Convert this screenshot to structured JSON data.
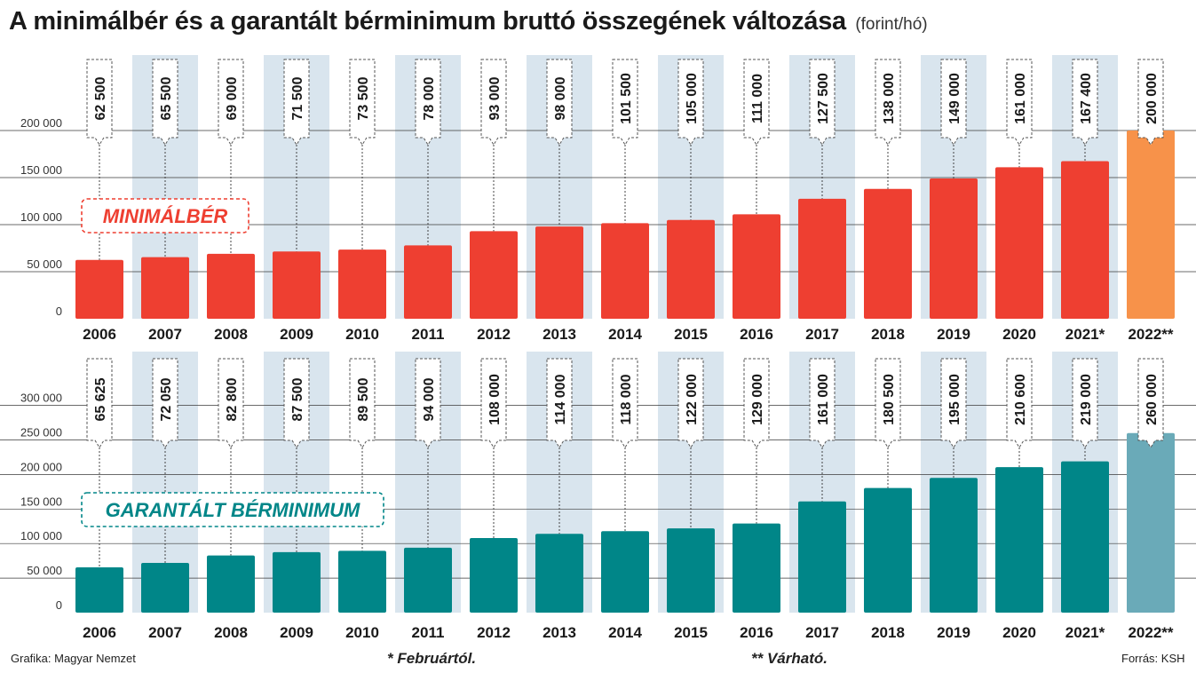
{
  "title": "A minimálbér és a garantált bérminimum bruttó összegének változása",
  "title_unit": "(forint/hó)",
  "colors": {
    "minimalber": "#ee3f31",
    "minimalber_forecast": "#f7924a",
    "berminimum": "#008688",
    "berminimum_forecast": "#6aaab8",
    "stripe": "#d9e5ee"
  },
  "chart_data": [
    {
      "type": "bar",
      "label": "MINIMÁLBÉR",
      "categories": [
        "2006",
        "2007",
        "2008",
        "2009",
        "2010",
        "2011",
        "2012",
        "2013",
        "2014",
        "2015",
        "2016",
        "2017",
        "2018",
        "2019",
        "2020",
        "2021*",
        "2022**"
      ],
      "values": [
        62500,
        65500,
        69000,
        71500,
        73500,
        78000,
        93000,
        98000,
        101500,
        105000,
        111000,
        127500,
        138000,
        149000,
        161000,
        167400,
        200000
      ],
      "value_labels": [
        "62 500",
        "65 500",
        "69 000",
        "71 500",
        "73 500",
        "78 000",
        "93 000",
        "98 000",
        "101 500",
        "105 000",
        "111 000",
        "127 500",
        "138 000",
        "149 000",
        "161 000",
        "167 400",
        "200 000"
      ],
      "yticks": [
        "0",
        "50 000",
        "100 000",
        "150 000",
        "200 000"
      ],
      "ylim": [
        0,
        200000
      ]
    },
    {
      "type": "bar",
      "label": "GARANTÁLT BÉRMINIMUM",
      "categories": [
        "2006",
        "2007",
        "2008",
        "2009",
        "2010",
        "2011",
        "2012",
        "2013",
        "2014",
        "2015",
        "2016",
        "2017",
        "2018",
        "2019",
        "2020",
        "2021*",
        "2022**"
      ],
      "values": [
        65625,
        72050,
        82800,
        87500,
        89500,
        94000,
        108000,
        114000,
        118000,
        122000,
        129000,
        161000,
        180500,
        195000,
        210600,
        219000,
        260000
      ],
      "value_labels": [
        "65 625",
        "72 050",
        "82 800",
        "87 500",
        "89 500",
        "94 000",
        "108 000",
        "114 000",
        "118 000",
        "122 000",
        "129 000",
        "161 000",
        "180 500",
        "195 000",
        "210 600",
        "219 000",
        "260 000"
      ],
      "yticks": [
        "0",
        "50 000",
        "100 000",
        "150 000",
        "200 000",
        "250 000",
        "300 000"
      ],
      "ylim": [
        0,
        300000
      ]
    }
  ],
  "footer": {
    "credit": "Grafika: Magyar Nemzet",
    "note1": "* Februártól.",
    "note2": "** Várható.",
    "source": "Forrás: KSH"
  }
}
